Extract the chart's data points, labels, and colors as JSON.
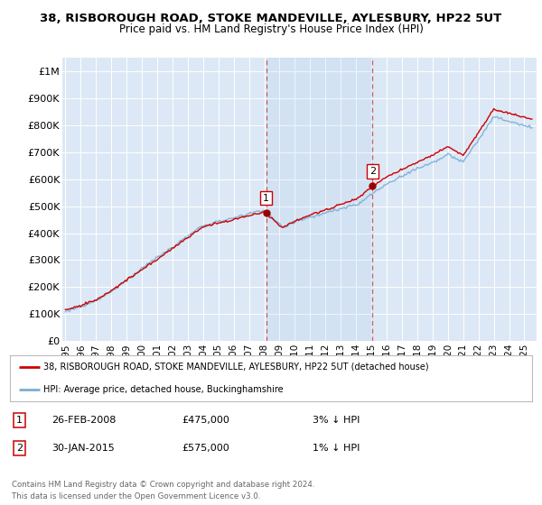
{
  "title": "38, RISBOROUGH ROAD, STOKE MANDEVILLE, AYLESBURY, HP22 5UT",
  "subtitle": "Price paid vs. HM Land Registry's House Price Index (HPI)",
  "ylim": [
    0,
    1050000
  ],
  "yticks": [
    0,
    100000,
    200000,
    300000,
    400000,
    500000,
    600000,
    700000,
    800000,
    900000,
    1000000
  ],
  "ytick_labels": [
    "£0",
    "£100K",
    "£200K",
    "£300K",
    "£400K",
    "£500K",
    "£600K",
    "£700K",
    "£800K",
    "£900K",
    "£1M"
  ],
  "background_color": "#ffffff",
  "plot_bg_color": "#dce8f5",
  "grid_color": "#ffffff",
  "hpi_color": "#7aaed4",
  "price_color": "#cc0000",
  "sale1_date": 2008.12,
  "sale1_price": 475000,
  "sale2_date": 2015.08,
  "sale2_price": 575000,
  "legend_property": "38, RISBOROUGH ROAD, STOKE MANDEVILLE, AYLESBURY, HP22 5UT (detached house)",
  "legend_hpi": "HPI: Average price, detached house, Buckinghamshire",
  "note1_label": "1",
  "note1_date": "26-FEB-2008",
  "note1_price": "£475,000",
  "note1_pct": "3% ↓ HPI",
  "note2_label": "2",
  "note2_date": "30-JAN-2015",
  "note2_price": "£575,000",
  "note2_pct": "1% ↓ HPI",
  "footer": "Contains HM Land Registry data © Crown copyright and database right 2024.\nThis data is licensed under the Open Government Licence v3.0.",
  "xstart": 1994.8,
  "xend": 2025.8
}
